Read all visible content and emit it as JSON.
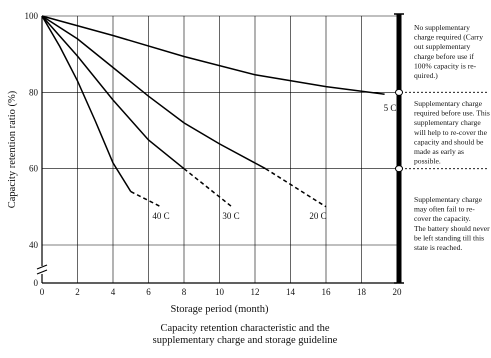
{
  "chart_data": {
    "type": "line",
    "title": "",
    "xlabel": "Storage period (month)",
    "ylabel": "Capacity retention ratio (%)",
    "xlim": [
      0,
      20
    ],
    "ylim": [
      0,
      100
    ],
    "y_axis_break": true,
    "x_ticks": [
      "0",
      "2",
      "4",
      "6",
      "8",
      "10",
      "12",
      "14",
      "16",
      "18",
      "20"
    ],
    "y_ticks": [
      {
        "value": 0,
        "label": "0"
      },
      {
        "value": 40,
        "label": "40"
      },
      {
        "value": 60,
        "label": "60"
      },
      {
        "value": 80,
        "label": "80"
      },
      {
        "value": 100,
        "label": "100"
      }
    ],
    "grid": true,
    "series": [
      {
        "name": "5 C",
        "solid": [
          [
            0,
            100
          ],
          [
            4,
            94.9
          ],
          [
            8,
            89.4
          ],
          [
            12,
            84.6
          ],
          [
            16,
            81.5
          ],
          [
            19.3,
            79.5
          ]
        ],
        "dashed": []
      },
      {
        "name": "20 C",
        "solid": [
          [
            0,
            100
          ],
          [
            2,
            94
          ],
          [
            4,
            86.5
          ],
          [
            6,
            79
          ],
          [
            8,
            72
          ],
          [
            10,
            66.5
          ],
          [
            12.6,
            60
          ]
        ],
        "dashed": [
          [
            12.6,
            60
          ],
          [
            16,
            50
          ]
        ]
      },
      {
        "name": "30 C",
        "solid": [
          [
            0,
            100
          ],
          [
            2,
            89.5
          ],
          [
            4,
            78
          ],
          [
            6,
            67.5
          ],
          [
            8,
            60
          ]
        ],
        "dashed": [
          [
            8,
            60
          ],
          [
            10.7,
            50
          ]
        ]
      },
      {
        "name": "40 C",
        "solid": [
          [
            0,
            100
          ],
          [
            1,
            92
          ],
          [
            2,
            83
          ],
          [
            3,
            72.5
          ],
          [
            4,
            61.5
          ],
          [
            5,
            54
          ]
        ],
        "dashed": [
          [
            5,
            54
          ],
          [
            6.7,
            50
          ]
        ]
      }
    ],
    "guide_regions": [
      {
        "range": [
          80,
          100
        ],
        "text": "No supplementary charge required (Carry out supplementary charge before use if 100% capacity is required.)"
      },
      {
        "range": [
          60,
          80
        ],
        "text": "Supplementary charge required before use. This supplementary charge will help to recover the capacity and should be made as early as possible."
      },
      {
        "range": [
          40,
          60
        ],
        "text": "Supplementary charge may often fail to recover the capacity. The battery should never be left standing till this state is reached."
      }
    ],
    "caption": [
      "Capacity retention characteristic and the",
      "supplementary charge and storage guideline"
    ]
  }
}
